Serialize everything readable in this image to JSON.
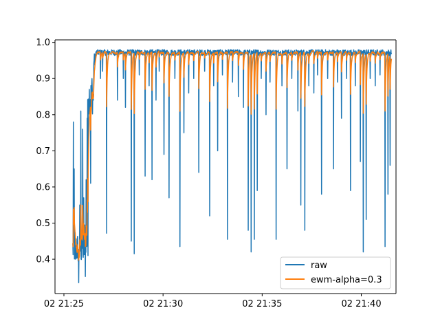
{
  "chart_data": {
    "type": "line",
    "title": "",
    "xlabel": "",
    "ylabel": "",
    "x_unit": "minutes after 02 21:25",
    "xlim": [
      -0.45,
      16.75
    ],
    "ylim": [
      0.305,
      1.007
    ],
    "grid": false,
    "legend_position": "lower-right",
    "x_ticks": [
      {
        "value": 0,
        "label": "02 21:25"
      },
      {
        "value": 5,
        "label": "02 21:30"
      },
      {
        "value": 10,
        "label": "02 21:35"
      },
      {
        "value": 15,
        "label": "02 21:40"
      }
    ],
    "y_ticks": [
      {
        "value": 0.4,
        "label": "0.4"
      },
      {
        "value": 0.5,
        "label": "0.5"
      },
      {
        "value": 0.6,
        "label": "0.6"
      },
      {
        "value": 0.7,
        "label": "0.7"
      },
      {
        "value": 0.8,
        "label": "0.8"
      },
      {
        "value": 0.9,
        "label": "0.9"
      },
      {
        "value": 1.0,
        "label": "1.0"
      }
    ],
    "series": [
      {
        "name": "raw",
        "color": "#1f77b4",
        "x_start": 0.45,
        "x_end": 16.52,
        "baseline_segments": [
          {
            "x0": 0.45,
            "x1": 1.05,
            "y": 0.43,
            "noise": 0.045
          },
          {
            "x0": 1.05,
            "x1": 1.2,
            "y": 0.46,
            "noise": 0.05
          },
          {
            "x0": 1.2,
            "x1": 1.5,
            "y": 0.85,
            "noise": 0.05
          },
          {
            "x0": 1.5,
            "x1": 1.6,
            "y": 0.95,
            "noise": 0.02
          },
          {
            "x0": 1.6,
            "x1": 16.52,
            "y": 0.972,
            "noise": 0.008
          }
        ],
        "spikes": [
          {
            "x": 0.48,
            "y": 0.78
          },
          {
            "x": 0.52,
            "y": 0.65
          },
          {
            "x": 0.58,
            "y": 0.4
          },
          {
            "x": 0.7,
            "y": 0.42
          },
          {
            "x": 0.75,
            "y": 0.335
          },
          {
            "x": 0.8,
            "y": 0.55
          },
          {
            "x": 0.85,
            "y": 0.81
          },
          {
            "x": 0.9,
            "y": 0.48
          },
          {
            "x": 0.95,
            "y": 0.76
          },
          {
            "x": 1.0,
            "y": 0.57
          },
          {
            "x": 1.08,
            "y": 0.352
          },
          {
            "x": 1.12,
            "y": 0.62
          },
          {
            "x": 1.18,
            "y": 0.79
          },
          {
            "x": 1.22,
            "y": 0.41
          },
          {
            "x": 1.28,
            "y": 0.87
          },
          {
            "x": 1.35,
            "y": 0.61
          },
          {
            "x": 1.42,
            "y": 0.9
          },
          {
            "x": 1.48,
            "y": 0.84
          },
          {
            "x": 1.85,
            "y": 0.9
          },
          {
            "x": 1.95,
            "y": 0.92
          },
          {
            "x": 2.15,
            "y": 0.472
          },
          {
            "x": 2.7,
            "y": 0.84
          },
          {
            "x": 3.0,
            "y": 0.9
          },
          {
            "x": 3.1,
            "y": 0.82
          },
          {
            "x": 3.4,
            "y": 0.45
          },
          {
            "x": 3.55,
            "y": 0.415
          },
          {
            "x": 3.8,
            "y": 0.91
          },
          {
            "x": 4.1,
            "y": 0.63
          },
          {
            "x": 4.3,
            "y": 0.88
          },
          {
            "x": 4.45,
            "y": 0.62
          },
          {
            "x": 4.65,
            "y": 0.84
          },
          {
            "x": 4.8,
            "y": 0.92
          },
          {
            "x": 5.05,
            "y": 0.69
          },
          {
            "x": 5.3,
            "y": 0.57
          },
          {
            "x": 5.6,
            "y": 0.9
          },
          {
            "x": 5.85,
            "y": 0.435
          },
          {
            "x": 6.05,
            "y": 0.75
          },
          {
            "x": 6.3,
            "y": 0.86
          },
          {
            "x": 6.55,
            "y": 0.9
          },
          {
            "x": 6.8,
            "y": 0.64
          },
          {
            "x": 7.1,
            "y": 0.92
          },
          {
            "x": 7.35,
            "y": 0.52
          },
          {
            "x": 7.55,
            "y": 0.88
          },
          {
            "x": 7.75,
            "y": 0.7
          },
          {
            "x": 8.0,
            "y": 0.91
          },
          {
            "x": 8.25,
            "y": 0.455
          },
          {
            "x": 8.5,
            "y": 0.89
          },
          {
            "x": 8.8,
            "y": 0.85
          },
          {
            "x": 9.05,
            "y": 0.82
          },
          {
            "x": 9.3,
            "y": 0.48
          },
          {
            "x": 9.45,
            "y": 0.42
          },
          {
            "x": 9.6,
            "y": 0.455
          },
          {
            "x": 9.75,
            "y": 0.59
          },
          {
            "x": 9.95,
            "y": 0.9
          },
          {
            "x": 10.2,
            "y": 0.8
          },
          {
            "x": 10.4,
            "y": 0.89
          },
          {
            "x": 10.7,
            "y": 0.455
          },
          {
            "x": 11.0,
            "y": 0.88
          },
          {
            "x": 11.25,
            "y": 0.65
          },
          {
            "x": 11.5,
            "y": 0.9
          },
          {
            "x": 11.8,
            "y": 0.81
          },
          {
            "x": 11.95,
            "y": 0.55
          },
          {
            "x": 12.15,
            "y": 0.48
          },
          {
            "x": 12.35,
            "y": 0.88
          },
          {
            "x": 12.6,
            "y": 0.86
          },
          {
            "x": 12.8,
            "y": 0.91
          },
          {
            "x": 13.0,
            "y": 0.58
          },
          {
            "x": 13.3,
            "y": 0.9
          },
          {
            "x": 13.6,
            "y": 0.65
          },
          {
            "x": 13.8,
            "y": 0.89
          },
          {
            "x": 14.0,
            "y": 0.79
          },
          {
            "x": 14.25,
            "y": 0.9
          },
          {
            "x": 14.45,
            "y": 0.59
          },
          {
            "x": 14.7,
            "y": 0.88
          },
          {
            "x": 14.95,
            "y": 0.67
          },
          {
            "x": 15.1,
            "y": 0.42
          },
          {
            "x": 15.25,
            "y": 0.51
          },
          {
            "x": 15.45,
            "y": 0.9
          },
          {
            "x": 15.7,
            "y": 0.88
          },
          {
            "x": 15.95,
            "y": 0.91
          },
          {
            "x": 16.2,
            "y": 0.435
          },
          {
            "x": 16.35,
            "y": 0.58
          },
          {
            "x": 16.45,
            "y": 0.66
          }
        ]
      },
      {
        "name": "ewm-alpha=0.3",
        "color": "#ff7f0e",
        "alpha": 0.3,
        "smoothing_of": "raw"
      }
    ]
  }
}
